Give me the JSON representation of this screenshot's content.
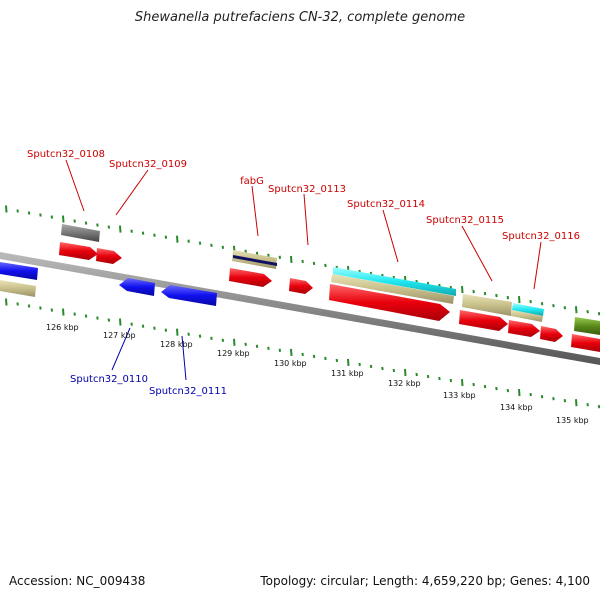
{
  "title": "Shewanella putrefaciens CN-32, complete genome",
  "footer": {
    "accession": "Accession: NC_009438",
    "summary": "Topology: circular; Length: 4,659,220 bp; Genes: 4,100"
  },
  "colors": {
    "red": "#e8000c",
    "blue": "#1010ee",
    "olive": "#c8c08a",
    "cyan": "#20e8f0",
    "gray": "#777777",
    "navy": "#101060",
    "darkgreen": "#5a8a1a",
    "tick": "#2a8a2a",
    "label_red": "#cc0000",
    "label_blue": "#0000aa"
  },
  "axis": {
    "unit": "kbp",
    "labels": [
      "126 kbp",
      "127 kbp",
      "128 kbp",
      "129 kbp",
      "130 kbp",
      "131 kbp",
      "132 kbp",
      "133 kbp",
      "134 kbp",
      "135 kbp"
    ]
  },
  "gene_labels": [
    {
      "text": "Sputcn32_0108",
      "strand": "forward"
    },
    {
      "text": "Sputcn32_0109",
      "strand": "forward"
    },
    {
      "text": "fabG",
      "strand": "forward"
    },
    {
      "text": "Sputcn32_0113",
      "strand": "forward"
    },
    {
      "text": "Sputcn32_0114",
      "strand": "forward"
    },
    {
      "text": "Sputcn32_0115",
      "strand": "forward"
    },
    {
      "text": "Sputcn32_0116",
      "strand": "forward"
    },
    {
      "text": "Sputcn32_0110",
      "strand": "reverse"
    },
    {
      "text": "Sputcn32_0111",
      "strand": "reverse"
    }
  ]
}
